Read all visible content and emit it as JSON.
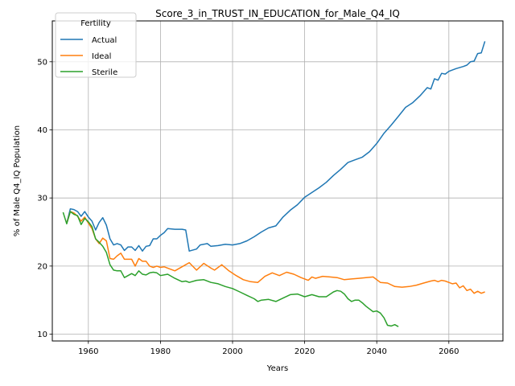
{
  "chart_data": {
    "type": "line",
    "title": "Score_3_in_TRUST_IN_EDUCATION_for_Male_Q4_IQ",
    "xlabel": "Years",
    "ylabel": "% of Male Q4_IQ Population",
    "xlim": [
      1950,
      2075
    ],
    "ylim": [
      9,
      56
    ],
    "xticks": [
      1960,
      1980,
      2000,
      2020,
      2040,
      2060
    ],
    "yticks": [
      10,
      20,
      30,
      40,
      50
    ],
    "grid": true,
    "legend": {
      "title": "Fertility",
      "position": "upper-left"
    },
    "series": [
      {
        "name": "Actual",
        "color": "#1f77b4",
        "x": [
          1954,
          1955,
          1956,
          1957,
          1958,
          1959,
          1960,
          1961,
          1962,
          1963,
          1964,
          1965,
          1966,
          1967,
          1968,
          1969,
          1970,
          1971,
          1972,
          1973,
          1974,
          1975,
          1976,
          1977,
          1978,
          1979,
          1980,
          1981,
          1982,
          1984,
          1986,
          1987,
          1988,
          1990,
          1991,
          1993,
          1994,
          1996,
          1998,
          2000,
          2002,
          2004,
          2006,
          2008,
          2010,
          2012,
          2014,
          2016,
          2018,
          2020,
          2022,
          2024,
          2026,
          2028,
          2030,
          2032,
          2034,
          2036,
          2038,
          2040,
          2042,
          2044,
          2046,
          2048,
          2050,
          2052,
          2054,
          2055,
          2056,
          2057,
          2058,
          2059,
          2060,
          2062,
          2064,
          2065,
          2066,
          2067,
          2068,
          2069,
          2070
        ],
        "values": [
          26.3,
          28.4,
          28.3,
          28.0,
          27.3,
          28.0,
          27.2,
          26.6,
          25.3,
          26.4,
          27.1,
          26.0,
          24.0,
          23.1,
          23.3,
          23.1,
          22.3,
          22.8,
          22.8,
          22.3,
          23.0,
          22.2,
          22.9,
          23.0,
          24.0,
          24.0,
          24.5,
          24.9,
          25.5,
          25.4,
          25.4,
          25.3,
          22.2,
          22.5,
          23.1,
          23.3,
          22.9,
          23.0,
          23.2,
          23.1,
          23.3,
          23.7,
          24.3,
          25.0,
          25.6,
          25.9,
          27.2,
          28.2,
          29.0,
          30.1,
          30.8,
          31.5,
          32.3,
          33.3,
          34.2,
          35.2,
          35.6,
          36.0,
          36.8,
          38.0,
          39.5,
          40.7,
          42.0,
          43.3,
          44.0,
          45.0,
          46.2,
          46.0,
          47.5,
          47.3,
          48.3,
          48.2,
          48.6,
          49.0,
          49.3,
          49.5,
          50.0,
          50.1,
          51.2,
          51.3,
          53.0
        ]
      },
      {
        "name": "Ideal",
        "color": "#ff7f0e",
        "x": [
          1954,
          1955,
          1956,
          1957,
          1958,
          1959,
          1960,
          1961,
          1962,
          1963,
          1964,
          1965,
          1966,
          1967,
          1968,
          1969,
          1970,
          1971,
          1972,
          1973,
          1974,
          1975,
          1976,
          1977,
          1978,
          1979,
          1980,
          1981,
          1982,
          1984,
          1986,
          1988,
          1990,
          1992,
          1994,
          1995,
          1997,
          1999,
          2001,
          2003,
          2005,
          2007,
          2009,
          2011,
          2013,
          2015,
          2017,
          2019,
          2021,
          2022,
          2023,
          2025,
          2027,
          2029,
          2031,
          2033,
          2035,
          2037,
          2039,
          2041,
          2043,
          2045,
          2047,
          2049,
          2051,
          2053,
          2055,
          2056,
          2057,
          2058,
          2059,
          2060,
          2061,
          2062,
          2063,
          2064,
          2065,
          2066,
          2067,
          2068,
          2069,
          2070
        ],
        "values": [
          26.3,
          28.0,
          27.8,
          27.3,
          26.6,
          27.2,
          26.3,
          25.5,
          24.0,
          23.3,
          24.1,
          23.7,
          21.1,
          21.0,
          21.5,
          21.9,
          21.0,
          21.0,
          21.0,
          20.0,
          21.1,
          20.7,
          20.7,
          20.0,
          19.8,
          20.0,
          19.8,
          19.9,
          19.7,
          19.3,
          19.9,
          20.5,
          19.4,
          20.4,
          19.7,
          19.4,
          20.2,
          19.3,
          18.6,
          18.0,
          17.7,
          17.6,
          18.5,
          19.0,
          18.6,
          19.1,
          18.8,
          18.3,
          17.9,
          18.4,
          18.2,
          18.5,
          18.4,
          18.3,
          18.0,
          18.1,
          18.2,
          18.3,
          18.4,
          17.6,
          17.5,
          17.0,
          16.9,
          17.0,
          17.2,
          17.5,
          17.8,
          17.9,
          17.7,
          17.9,
          17.8,
          17.6,
          17.4,
          17.5,
          16.8,
          17.1,
          16.4,
          16.6,
          16.0,
          16.3,
          16.0,
          16.2
        ]
      },
      {
        "name": "Sterile",
        "color": "#2ca02c",
        "x": [
          1953,
          1954,
          1955,
          1956,
          1957,
          1958,
          1959,
          1960,
          1961,
          1962,
          1963,
          1964,
          1965,
          1966,
          1967,
          1968,
          1969,
          1970,
          1971,
          1972,
          1973,
          1974,
          1975,
          1976,
          1977,
          1978,
          1979,
          1980,
          1982,
          1984,
          1986,
          1987,
          1988,
          1990,
          1992,
          1994,
          1996,
          1998,
          2000,
          2002,
          2004,
          2006,
          2007,
          2008,
          2010,
          2012,
          2014,
          2016,
          2018,
          2020,
          2022,
          2024,
          2026,
          2028,
          2029,
          2030,
          2031,
          2032,
          2033,
          2034,
          2035,
          2036,
          2037,
          2038,
          2039,
          2040,
          2041,
          2042,
          2043,
          2044,
          2045,
          2046
        ],
        "values": [
          27.9,
          26.2,
          28.0,
          27.6,
          27.4,
          26.1,
          27.0,
          26.5,
          25.8,
          24.0,
          23.5,
          22.9,
          22.0,
          20.2,
          19.4,
          19.3,
          19.3,
          18.3,
          18.6,
          18.9,
          18.6,
          19.3,
          18.8,
          18.7,
          19.0,
          19.1,
          19.0,
          18.6,
          18.8,
          18.2,
          17.7,
          17.8,
          17.6,
          17.9,
          18.0,
          17.6,
          17.4,
          17.0,
          16.7,
          16.2,
          15.7,
          15.2,
          14.8,
          15.0,
          15.1,
          14.8,
          15.3,
          15.8,
          15.9,
          15.5,
          15.8,
          15.5,
          15.5,
          16.2,
          16.4,
          16.3,
          15.9,
          15.2,
          14.8,
          15.0,
          15.0,
          14.6,
          14.1,
          13.7,
          13.3,
          13.4,
          13.1,
          12.4,
          11.3,
          11.2,
          11.4,
          11.1
        ]
      }
    ]
  }
}
